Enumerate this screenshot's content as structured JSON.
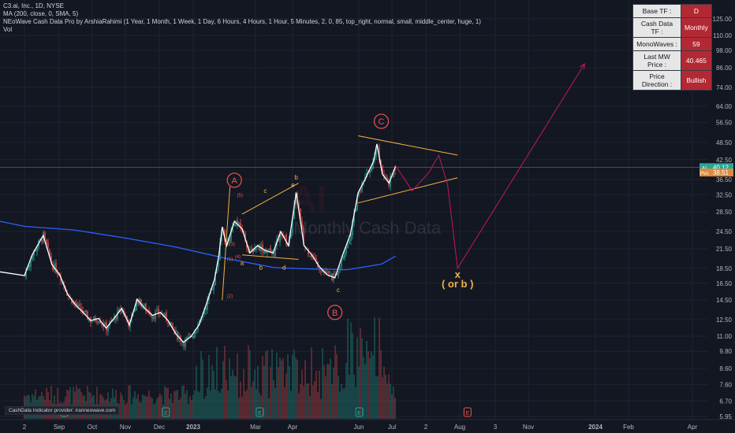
{
  "legend": {
    "symbol": "C3.ai, Inc., 1D, NYSE",
    "ma": "MA (200, close, 0, SMA, 5)",
    "indicator": "NEoWave Cash Data Pro by ArshiaRahimi (1 Year, 1 Month, 1 Week, 1 Day, 6 Hours, 4 Hours, 1 Hour, 5 Minutes, 2, 0, 85, top_right, normal, small, middle_center, huge, 1)",
    "vol": "Vol"
  },
  "info_table": [
    {
      "key": "Base TF :",
      "value": "D"
    },
    {
      "key": "Cash Data TF :",
      "value": "Monthly"
    },
    {
      "key": "MonoWaves :",
      "value": "59"
    },
    {
      "key": "Last MW Price :",
      "value": "40.465"
    },
    {
      "key": "Price Direction :",
      "value": "Bullish"
    }
  ],
  "credit": "CashData Indicator provider: iranneowave.com",
  "watermark": {
    "big": "AI",
    "text": "Monthly Cash Data",
    "sub": "C3.ai, Inc."
  },
  "colors": {
    "bg": "#131722",
    "up": "#26a69a",
    "down": "#ef5350",
    "wave": "#ffffff",
    "ma": "#2962ff",
    "channel": "#f5b041",
    "target": "#c2185b",
    "label": "#ef5350"
  },
  "chart_data": {
    "type": "candlestick",
    "title": "C3.ai, Inc., 1D, NYSE",
    "scale": "log",
    "ylim": [
      5.95,
      135
    ],
    "y_ticks": [
      "125.00",
      "110.00",
      "98.00",
      "86.00",
      "74.00",
      "64.00",
      "56.50",
      "48.50",
      "42.50",
      "36.50",
      "32.50",
      "28.50",
      "24.50",
      "21.50",
      "18.50",
      "16.50",
      "14.50",
      "12.50",
      "11.00",
      "9.80",
      "8.60",
      "7.60",
      "6.70",
      "5.95"
    ],
    "x_ticks": [
      "2",
      "Sep",
      "Oct",
      "Nov",
      "Dec",
      "2023",
      "Mar",
      "Apr",
      "Jun",
      "Jul",
      "2",
      "Aug",
      "3",
      "Nov",
      "2024",
      "Feb",
      "Apr"
    ],
    "price_tags": [
      {
        "label": "AI",
        "value": "40.12"
      },
      {
        "label": "Pvs",
        "value": "38.51"
      }
    ],
    "price_path": [
      [
        "2022-08-01",
        17.5
      ],
      [
        "2022-08-08",
        20.5
      ],
      [
        "2022-08-18",
        23.8
      ],
      [
        "2022-08-26",
        19.0
      ],
      [
        "2022-09-02",
        17.6
      ],
      [
        "2022-09-09",
        15.2
      ],
      [
        "2022-09-16",
        14.0
      ],
      [
        "2022-09-23",
        13.2
      ],
      [
        "2022-09-30",
        12.4
      ],
      [
        "2022-10-07",
        12.6
      ],
      [
        "2022-10-14",
        11.7
      ],
      [
        "2022-10-21",
        12.6
      ],
      [
        "2022-10-28",
        13.6
      ],
      [
        "2022-11-04",
        12.0
      ],
      [
        "2022-11-11",
        14.6
      ],
      [
        "2022-11-18",
        13.6
      ],
      [
        "2022-11-25",
        12.9
      ],
      [
        "2022-12-02",
        13.2
      ],
      [
        "2022-12-09",
        12.4
      ],
      [
        "2022-12-16",
        11.2
      ],
      [
        "2022-12-23",
        10.5
      ],
      [
        "2022-12-30",
        11.0
      ],
      [
        "2023-01-06",
        12.0
      ],
      [
        "2023-01-13",
        14.2
      ],
      [
        "2023-01-20",
        17.0
      ],
      [
        "2023-01-24",
        20.5
      ],
      [
        "2023-01-27",
        25.4
      ],
      [
        "2023-01-31",
        22.0
      ],
      [
        "2023-02-07",
        26.5
      ],
      [
        "2023-02-14",
        25.0
      ],
      [
        "2023-02-21",
        20.8
      ],
      [
        "2023-02-28",
        22.0
      ],
      [
        "2023-03-07",
        21.2
      ],
      [
        "2023-03-14",
        20.8
      ],
      [
        "2023-03-21",
        24.5
      ],
      [
        "2023-03-28",
        22.0
      ],
      [
        "2023-04-04",
        33.0
      ],
      [
        "2023-04-11",
        22.0
      ],
      [
        "2023-04-18",
        20.5
      ],
      [
        "2023-04-25",
        18.7
      ],
      [
        "2023-05-02",
        17.6
      ],
      [
        "2023-05-09",
        17.2
      ],
      [
        "2023-05-16",
        20.5
      ],
      [
        "2023-05-23",
        24.0
      ],
      [
        "2023-05-30",
        33.0
      ],
      [
        "2023-06-06",
        37.0
      ],
      [
        "2023-06-13",
        42.0
      ],
      [
        "2023-06-16",
        47.9
      ],
      [
        "2023-06-21",
        38.0
      ],
      [
        "2023-06-27",
        35.5
      ],
      [
        "2023-07-03",
        40.5
      ]
    ],
    "ma200": [
      [
        "2022-08-01",
        25.5
      ],
      [
        "2022-09-15",
        24.8
      ],
      [
        "2022-11-01",
        23.3
      ],
      [
        "2022-12-15",
        21.8
      ],
      [
        "2023-02-01",
        19.9
      ],
      [
        "2023-03-15",
        18.6
      ],
      [
        "2023-04-20",
        18.4
      ],
      [
        "2023-05-20",
        18.3
      ],
      [
        "2023-06-20",
        19.1
      ],
      [
        "2023-07-03",
        20.3
      ]
    ],
    "waves": [
      {
        "label": "A",
        "date": "2023-02-07",
        "price": 36.3
      },
      {
        "label": "B",
        "date": "2023-05-09",
        "price": 13.2
      },
      {
        "label": "C",
        "date": "2023-06-20",
        "price": 57.0
      },
      {
        "label": "x",
        "date": "2023-08-28",
        "price": 17.2
      },
      {
        "label": "( or b )",
        "date": "2023-08-28",
        "price": 16.0
      }
    ],
    "sub_labels": [
      {
        "label": "a",
        "date": "2023-02-14",
        "price": 18.9
      },
      {
        "label": "b",
        "date": "2023-03-03",
        "price": 18.3
      },
      {
        "label": "c",
        "date": "2023-03-07",
        "price": 33.0
      },
      {
        "label": "d",
        "date": "2023-03-24",
        "price": 18.3
      },
      {
        "label": "e",
        "date": "2023-04-01",
        "price": 34.5
      },
      {
        "label": "b",
        "date": "2023-04-04",
        "price": 36.5
      },
      {
        "label": "c",
        "date": "2023-05-12",
        "price": 15.4
      },
      {
        "label": "(5)",
        "date": "2023-02-12",
        "price": 32.0
      },
      {
        "label": "(3)",
        "date": "2023-02-05",
        "price": 22.0
      },
      {
        "label": "(4)",
        "date": "2023-02-10",
        "price": 20.0
      },
      {
        "label": "(1)",
        "date": "2023-02-03",
        "price": 19.6
      },
      {
        "label": "(2)",
        "date": "2023-02-03",
        "price": 14.8
      }
    ],
    "projection": [
      [
        "2023-07-03",
        40.5
      ],
      [
        "2023-07-18",
        33.5
      ],
      [
        "2023-08-02",
        38.5
      ],
      [
        "2023-08-11",
        44.0
      ],
      [
        "2023-08-19",
        35.0
      ],
      [
        "2023-08-28",
        18.5
      ],
      [
        "2023-12-21",
        88.5
      ]
    ]
  }
}
